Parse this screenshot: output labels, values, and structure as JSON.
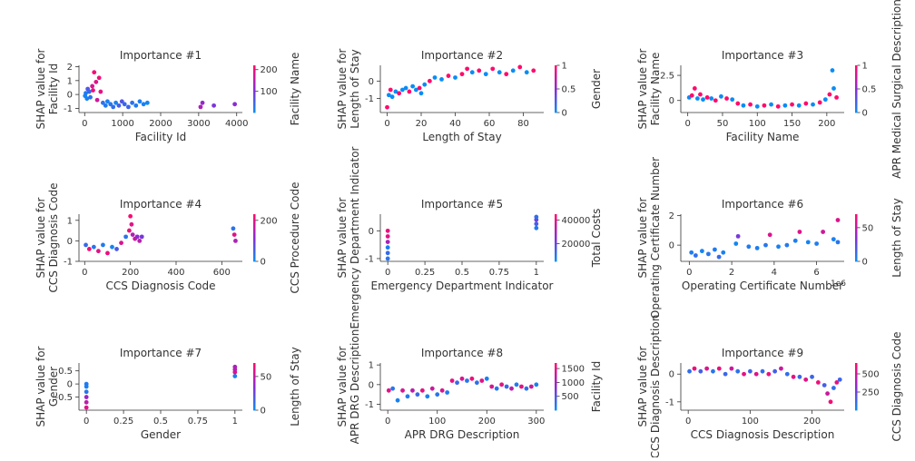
{
  "colors": {
    "low": "#0a8cf5",
    "mid": "#8a2bd6",
    "high": "#ff0a6c"
  },
  "chart_data": [
    {
      "type": "scatter",
      "title": "Importance #1",
      "xlabel": "Facility Id",
      "ylabel_lines": [
        "SHAP value for",
        "Facility Id"
      ],
      "color_label": "Facility Name",
      "xlim": [
        -150,
        4150
      ],
      "ylim": [
        -1.3,
        2.1
      ],
      "xticks": [
        0,
        1000,
        2000,
        3000,
        4000
      ],
      "yticks": [
        -1,
        0,
        1,
        2
      ],
      "cticks": [
        100,
        200
      ],
      "clim": [
        0,
        220
      ],
      "points": [
        [
          10,
          -0.1,
          5
        ],
        [
          30,
          0.1,
          20
        ],
        [
          60,
          -0.3,
          10
        ],
        [
          80,
          0.4,
          60
        ],
        [
          120,
          0.2,
          40
        ],
        [
          150,
          -0.2,
          30
        ],
        [
          200,
          0.6,
          180
        ],
        [
          220,
          0.3,
          200
        ],
        [
          250,
          1.6,
          210
        ],
        [
          300,
          0.9,
          190
        ],
        [
          330,
          -0.4,
          170
        ],
        [
          380,
          1.2,
          205
        ],
        [
          420,
          0.2,
          195
        ],
        [
          480,
          -0.6,
          30
        ],
        [
          550,
          -0.8,
          20
        ],
        [
          600,
          -0.5,
          15
        ],
        [
          680,
          -0.7,
          25
        ],
        [
          750,
          -0.9,
          35
        ],
        [
          820,
          -0.6,
          10
        ],
        [
          900,
          -0.8,
          50
        ],
        [
          980,
          -0.5,
          60
        ],
        [
          1050,
          -0.7,
          40
        ],
        [
          1150,
          -0.9,
          45
        ],
        [
          1250,
          -0.6,
          30
        ],
        [
          1350,
          -0.8,
          20
        ],
        [
          1450,
          -0.5,
          15
        ],
        [
          1550,
          -0.7,
          10
        ],
        [
          1650,
          -0.6,
          5
        ],
        [
          3050,
          -0.9,
          140
        ],
        [
          3100,
          -0.6,
          120
        ],
        [
          3400,
          -0.8,
          100
        ],
        [
          3950,
          -0.7,
          110
        ]
      ]
    },
    {
      "type": "scatter",
      "title": "Importance #2",
      "xlabel": "Length of Stay",
      "ylabel_lines": [
        "SHAP value for",
        "Length of Stay"
      ],
      "color_label": "Gender",
      "xlim": [
        -4,
        92
      ],
      "ylim": [
        -1.8,
        0.9
      ],
      "xticks": [
        0,
        20,
        40,
        60,
        80
      ],
      "yticks": [
        -1,
        0
      ],
      "cticks": [
        0.0,
        0.5,
        1.0
      ],
      "clim": [
        0,
        1
      ],
      "points": [
        [
          0,
          -1.5,
          1
        ],
        [
          1,
          -0.8,
          0
        ],
        [
          2,
          -0.5,
          1
        ],
        [
          3,
          -0.9,
          0
        ],
        [
          5,
          -0.6,
          0
        ],
        [
          7,
          -0.7,
          1
        ],
        [
          9,
          -0.5,
          0
        ],
        [
          11,
          -0.4,
          0
        ],
        [
          13,
          -0.6,
          1
        ],
        [
          15,
          -0.3,
          0
        ],
        [
          17,
          -0.5,
          0
        ],
        [
          19,
          -0.4,
          1
        ],
        [
          20,
          -0.7,
          0
        ],
        [
          22,
          -0.2,
          0
        ],
        [
          25,
          0.0,
          1
        ],
        [
          28,
          0.2,
          0
        ],
        [
          32,
          0.1,
          0
        ],
        [
          36,
          0.3,
          1
        ],
        [
          40,
          0.2,
          0
        ],
        [
          44,
          0.4,
          1
        ],
        [
          47,
          0.7,
          1
        ],
        [
          50,
          0.5,
          0
        ],
        [
          54,
          0.6,
          1
        ],
        [
          58,
          0.4,
          0
        ],
        [
          62,
          0.7,
          1
        ],
        [
          66,
          0.5,
          0
        ],
        [
          70,
          0.4,
          1
        ],
        [
          74,
          0.6,
          0
        ],
        [
          78,
          0.8,
          1
        ],
        [
          82,
          0.5,
          0
        ],
        [
          86,
          0.6,
          1
        ]
      ]
    },
    {
      "type": "scatter",
      "title": "Importance #3",
      "xlabel": "Facility Name",
      "ylabel_lines": [
        "SHAP value for",
        "Facility Name"
      ],
      "color_label": "APR Medical Surgical Description",
      "xlim": [
        -10,
        225
      ],
      "ylim": [
        -1.2,
        3.5
      ],
      "xticks": [
        0,
        50,
        100,
        150,
        200
      ],
      "yticks": [
        0.0,
        2.5
      ],
      "cticks": [
        0.0,
        0.5,
        1.0
      ],
      "clim": [
        0,
        1
      ],
      "points": [
        [
          2,
          0.3,
          0
        ],
        [
          6,
          0.5,
          1
        ],
        [
          10,
          1.2,
          1
        ],
        [
          14,
          0.2,
          0
        ],
        [
          18,
          0.6,
          1
        ],
        [
          22,
          0.1,
          0
        ],
        [
          28,
          0.3,
          1
        ],
        [
          34,
          0.2,
          0
        ],
        [
          40,
          0.0,
          1
        ],
        [
          48,
          0.4,
          0
        ],
        [
          56,
          0.2,
          1
        ],
        [
          64,
          0.1,
          0
        ],
        [
          72,
          -0.3,
          1
        ],
        [
          80,
          -0.5,
          0
        ],
        [
          90,
          -0.4,
          1
        ],
        [
          100,
          -0.6,
          0
        ],
        [
          110,
          -0.5,
          1
        ],
        [
          120,
          -0.4,
          0
        ],
        [
          130,
          -0.6,
          1
        ],
        [
          140,
          -0.5,
          0
        ],
        [
          150,
          -0.4,
          1
        ],
        [
          160,
          -0.5,
          0
        ],
        [
          170,
          -0.3,
          1
        ],
        [
          180,
          -0.4,
          0
        ],
        [
          190,
          -0.2,
          1
        ],
        [
          198,
          0.1,
          0
        ],
        [
          204,
          0.6,
          1
        ],
        [
          208,
          3.0,
          0
        ],
        [
          210,
          1.2,
          0
        ],
        [
          214,
          0.3,
          1
        ]
      ]
    },
    {
      "type": "scatter",
      "title": "Importance #4",
      "xlabel": "CCS Diagnosis Code",
      "ylabel_lines": [
        "SHAP value for",
        "CCS Diagnosis Code"
      ],
      "color_label": "CCS Procedure Code",
      "xlim": [
        -25,
        690
      ],
      "ylim": [
        -1.0,
        1.3
      ],
      "xticks": [
        0,
        200,
        400,
        600
      ],
      "yticks": [
        -1,
        0,
        1
      ],
      "cticks": [
        0,
        200
      ],
      "clim": [
        0,
        230
      ],
      "points": [
        [
          5,
          -0.2,
          40
        ],
        [
          20,
          -0.4,
          220
        ],
        [
          40,
          -0.3,
          30
        ],
        [
          60,
          -0.5,
          200
        ],
        [
          80,
          -0.2,
          20
        ],
        [
          100,
          -0.6,
          210
        ],
        [
          120,
          -0.3,
          10
        ],
        [
          140,
          -0.4,
          60
        ],
        [
          160,
          -0.1,
          190
        ],
        [
          180,
          0.2,
          30
        ],
        [
          195,
          0.5,
          210
        ],
        [
          200,
          1.2,
          220
        ],
        [
          205,
          0.8,
          200
        ],
        [
          210,
          0.3,
          150
        ],
        [
          220,
          0.1,
          180
        ],
        [
          230,
          0.2,
          120
        ],
        [
          240,
          0.0,
          160
        ],
        [
          250,
          0.2,
          100
        ],
        [
          650,
          0.6,
          30
        ],
        [
          655,
          0.3,
          200
        ],
        [
          660,
          0.0,
          150
        ]
      ]
    },
    {
      "type": "scatter",
      "title": "Importance #5",
      "xlabel": "Emergency Department Indicator",
      "ylabel_lines": [
        "SHAP value for",
        "Emergency Department Indicator"
      ],
      "color_label": "Total Costs",
      "xlim": [
        -0.05,
        1.05
      ],
      "ylim": [
        -1.1,
        0.6
      ],
      "xticks": [
        0.0,
        0.25,
        0.5,
        0.75,
        1.0
      ],
      "yticks": [
        -1,
        0
      ],
      "cticks": [
        20000,
        40000
      ],
      "clim": [
        5000,
        45000
      ],
      "points": [
        [
          0,
          -1.0,
          10000
        ],
        [
          0,
          -0.6,
          8000
        ],
        [
          0,
          -0.4,
          30000
        ],
        [
          0,
          -0.2,
          40000
        ],
        [
          0,
          0.0,
          42000
        ],
        [
          0,
          -0.8,
          12000
        ],
        [
          1,
          0.1,
          9000
        ],
        [
          1,
          0.25,
          15000
        ],
        [
          1,
          0.4,
          20000
        ],
        [
          1,
          0.5,
          11000
        ]
      ]
    },
    {
      "type": "scatter",
      "title": "Importance #6",
      "xlabel": "Operating Certificate Number",
      "ylabel_lines": [
        "SHAP value for",
        "Operating Certificate Number"
      ],
      "color_label": "Length of Stay",
      "x_offset_label": "1e6",
      "xlim": [
        -0.4,
        7.3
      ],
      "ylim": [
        -1.1,
        2.1
      ],
      "xticks": [
        0,
        2,
        4,
        6
      ],
      "yticks": [
        0,
        2
      ],
      "cticks": [
        0,
        50
      ],
      "clim": [
        0,
        70
      ],
      "points": [
        [
          0.1,
          -0.5,
          5
        ],
        [
          0.3,
          -0.7,
          10
        ],
        [
          0.6,
          -0.4,
          3
        ],
        [
          0.9,
          -0.6,
          8
        ],
        [
          1.2,
          -0.3,
          6
        ],
        [
          1.4,
          -0.8,
          12
        ],
        [
          1.6,
          -0.5,
          4
        ],
        [
          2.2,
          0.1,
          2
        ],
        [
          2.3,
          0.6,
          30
        ],
        [
          2.8,
          -0.1,
          6
        ],
        [
          3.2,
          -0.2,
          5
        ],
        [
          3.6,
          0.0,
          8
        ],
        [
          3.8,
          0.7,
          60
        ],
        [
          4.2,
          -0.1,
          4
        ],
        [
          4.6,
          0.0,
          7
        ],
        [
          5.0,
          0.3,
          5
        ],
        [
          5.2,
          0.9,
          60
        ],
        [
          5.6,
          0.2,
          3
        ],
        [
          6.0,
          0.1,
          6
        ],
        [
          6.3,
          0.9,
          55
        ],
        [
          6.8,
          0.4,
          4
        ],
        [
          7.0,
          1.7,
          60
        ],
        [
          7.0,
          0.2,
          8
        ]
      ]
    },
    {
      "type": "scatter",
      "title": "Importance #7",
      "xlabel": "Gender",
      "ylabel_lines": [
        "SHAP value for",
        "Gender"
      ],
      "color_label": "Length of Stay",
      "xlim": [
        -0.05,
        1.05
      ],
      "ylim": [
        -1.0,
        0.8
      ],
      "xticks": [
        0.0,
        0.25,
        0.5,
        0.75,
        1.0
      ],
      "yticks": [
        -0.5,
        0.0,
        0.5
      ],
      "cticks": [
        0,
        50
      ],
      "clim": [
        0,
        70
      ],
      "points": [
        [
          0,
          -0.9,
          60
        ],
        [
          0,
          -0.7,
          50
        ],
        [
          0,
          -0.5,
          40
        ],
        [
          0,
          -0.3,
          8
        ],
        [
          0,
          -0.1,
          4
        ],
        [
          0,
          0.0,
          6
        ],
        [
          1,
          0.3,
          5
        ],
        [
          1,
          0.45,
          60
        ],
        [
          1,
          0.55,
          50
        ],
        [
          1,
          0.65,
          45
        ]
      ]
    },
    {
      "type": "scatter",
      "title": "Importance #8",
      "xlabel": "APR DRG Description",
      "ylabel_lines": [
        "SHAP value for",
        "APR DRG Description"
      ],
      "color_label": "Facility Id",
      "xlim": [
        -15,
        315
      ],
      "ylim": [
        -1.3,
        1.1
      ],
      "xticks": [
        0,
        100,
        200,
        300
      ],
      "yticks": [
        -1,
        0,
        1
      ],
      "cticks": [
        500,
        1000,
        1500
      ],
      "clim": [
        0,
        1700
      ],
      "points": [
        [
          2,
          -0.3,
          1500
        ],
        [
          10,
          -0.2,
          200
        ],
        [
          20,
          -0.8,
          100
        ],
        [
          30,
          -0.3,
          1400
        ],
        [
          40,
          -0.6,
          150
        ],
        [
          50,
          -0.3,
          1200
        ],
        [
          60,
          -0.5,
          300
        ],
        [
          70,
          -0.3,
          1500
        ],
        [
          80,
          -0.6,
          100
        ],
        [
          90,
          -0.2,
          1300
        ],
        [
          100,
          -0.5,
          200
        ],
        [
          110,
          -0.3,
          1400
        ],
        [
          120,
          -0.4,
          150
        ],
        [
          130,
          0.2,
          1500
        ],
        [
          140,
          0.1,
          300
        ],
        [
          150,
          0.3,
          1400
        ],
        [
          160,
          0.2,
          200
        ],
        [
          170,
          0.3,
          1600
        ],
        [
          180,
          0.1,
          250
        ],
        [
          190,
          0.2,
          1500
        ],
        [
          200,
          0.3,
          100
        ],
        [
          210,
          -0.1,
          1400
        ],
        [
          220,
          -0.2,
          200
        ],
        [
          230,
          0.0,
          1500
        ],
        [
          240,
          -0.1,
          300
        ],
        [
          250,
          -0.2,
          1200
        ],
        [
          260,
          0.0,
          150
        ],
        [
          270,
          -0.1,
          1500
        ],
        [
          280,
          -0.2,
          250
        ],
        [
          290,
          -0.1,
          1300
        ],
        [
          300,
          0.0,
          100
        ]
      ]
    },
    {
      "type": "scatter",
      "title": "Importance #9",
      "xlabel": "CCS Diagnosis Description",
      "ylabel_lines": [
        "SHAP value for",
        "CCS Diagnosis Description"
      ],
      "color_label": "CCS Diagnosis Code",
      "xlim": [
        -12,
        252
      ],
      "ylim": [
        -1.3,
        0.4
      ],
      "xticks": [
        0,
        100,
        200
      ],
      "yticks": [
        -1,
        0
      ],
      "cticks": [
        250,
        500
      ],
      "clim": [
        0,
        650
      ],
      "points": [
        [
          2,
          0.1,
          100
        ],
        [
          10,
          0.2,
          600
        ],
        [
          20,
          0.1,
          150
        ],
        [
          30,
          0.2,
          550
        ],
        [
          40,
          0.1,
          80
        ],
        [
          50,
          0.2,
          600
        ],
        [
          60,
          0.0,
          120
        ],
        [
          70,
          0.2,
          500
        ],
        [
          80,
          0.1,
          90
        ],
        [
          90,
          0.0,
          580
        ],
        [
          100,
          0.1,
          130
        ],
        [
          110,
          0.0,
          560
        ],
        [
          120,
          0.1,
          100
        ],
        [
          130,
          0.0,
          600
        ],
        [
          140,
          0.1,
          150
        ],
        [
          150,
          0.2,
          500
        ],
        [
          160,
          0.0,
          100
        ],
        [
          170,
          -0.1,
          580
        ],
        [
          180,
          -0.1,
          120
        ],
        [
          190,
          -0.2,
          560
        ],
        [
          200,
          -0.1,
          130
        ],
        [
          210,
          -0.3,
          600
        ],
        [
          220,
          -0.4,
          150
        ],
        [
          225,
          -0.7,
          500
        ],
        [
          230,
          -1.0,
          620
        ],
        [
          235,
          -0.5,
          100
        ],
        [
          240,
          -0.3,
          580
        ],
        [
          245,
          -0.2,
          130
        ]
      ]
    }
  ]
}
